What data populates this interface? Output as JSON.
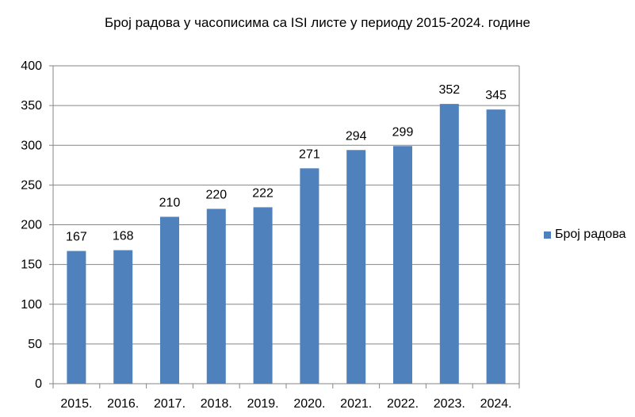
{
  "chart_data": {
    "type": "bar",
    "title": "Број радова у часописима са ISI листе у периоду 2015-2024. године",
    "categories": [
      "2015.",
      "2016.",
      "2017.",
      "2018.",
      "2019.",
      "2020.",
      "2021.",
      "2022.",
      "2023.",
      "2024."
    ],
    "series": [
      {
        "name": "Број радова",
        "values": [
          167,
          168,
          210,
          220,
          222,
          271,
          294,
          299,
          352,
          345
        ],
        "color": "#4f81bd"
      }
    ],
    "ylim": [
      0,
      400
    ],
    "yticks": [
      0,
      50,
      100,
      150,
      200,
      250,
      300,
      350,
      400
    ],
    "xlabel": "",
    "ylabel": "",
    "grid": true,
    "data_labels": true,
    "legend_position": "right"
  }
}
